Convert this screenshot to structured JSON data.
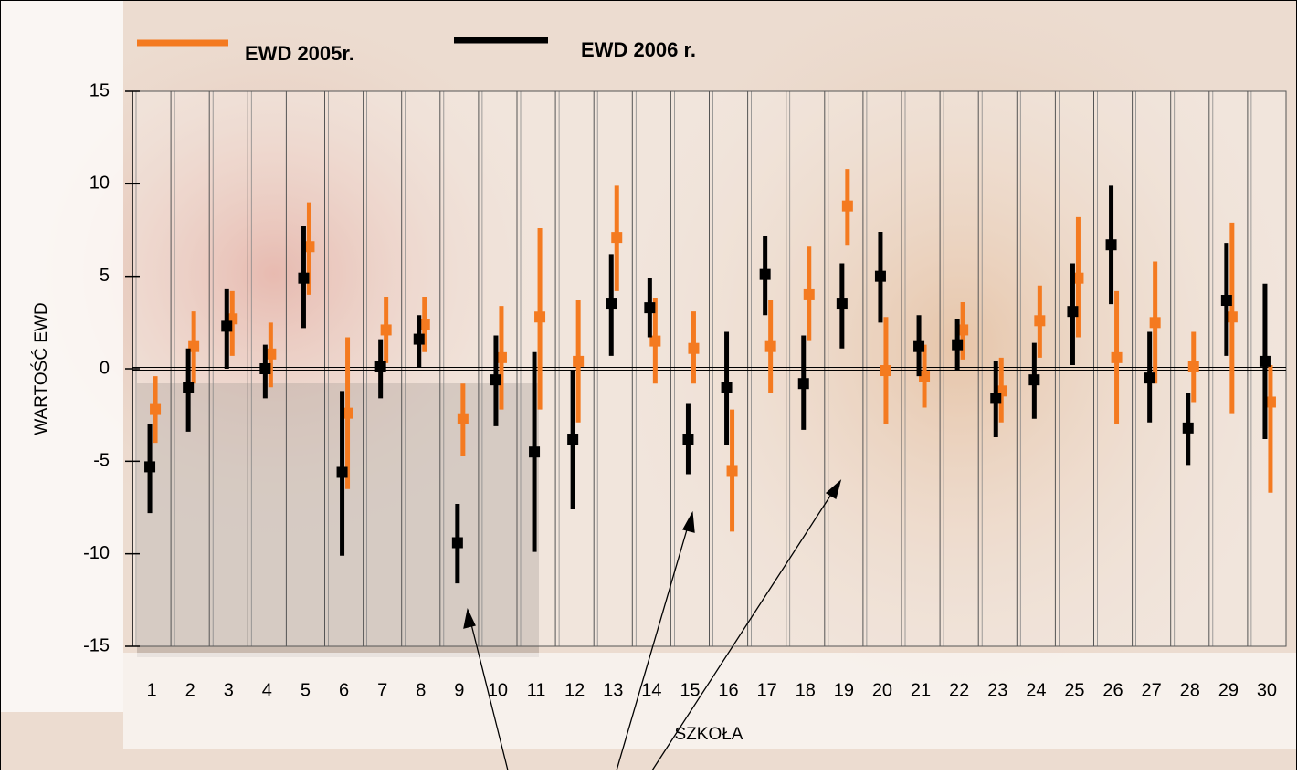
{
  "chart_data": {
    "type": "errorbar",
    "x_label": "SZKOŁA",
    "y_label": "WARTOŚĆ EWD",
    "categories": [
      1,
      2,
      3,
      4,
      5,
      6,
      7,
      8,
      9,
      10,
      11,
      12,
      13,
      14,
      15,
      16,
      17,
      18,
      19,
      20,
      21,
      22,
      23,
      24,
      25,
      26,
      27,
      28,
      29,
      30
    ],
    "ylim": [
      -15,
      15
    ],
    "yticks": [
      -15,
      -10,
      -5,
      0,
      5,
      10,
      15
    ],
    "legend": "top",
    "series": [
      {
        "name": "EWD 2005r.",
        "color": "#f47a20",
        "values": [
          -2.2,
          1.2,
          2.7,
          0.8,
          6.6,
          -2.4,
          2.1,
          2.4,
          -2.7,
          0.6,
          2.8,
          0.4,
          7.1,
          1.5,
          1.1,
          -5.5,
          1.2,
          4.0,
          8.8,
          -0.1,
          -0.4,
          2.1,
          -1.2,
          2.6,
          4.9,
          0.6,
          2.5,
          0.1,
          2.8,
          -1.8
        ],
        "lower": [
          -4.0,
          -0.8,
          0.7,
          -1.0,
          4.0,
          -6.5,
          0.3,
          0.9,
          -4.7,
          -2.2,
          -2.2,
          -2.9,
          4.2,
          -0.8,
          -0.8,
          -8.8,
          -1.3,
          1.5,
          6.7,
          -3.0,
          -2.1,
          0.5,
          -2.9,
          0.6,
          1.7,
          -3.0,
          -0.8,
          -1.8,
          -2.4,
          -6.7
        ],
        "upper": [
          -0.4,
          3.1,
          4.2,
          2.5,
          9.0,
          1.7,
          3.9,
          3.9,
          -0.8,
          3.4,
          7.6,
          3.7,
          9.9,
          3.8,
          3.1,
          -2.2,
          3.7,
          6.6,
          10.8,
          2.8,
          1.3,
          3.6,
          0.6,
          4.5,
          8.2,
          4.2,
          5.8,
          2.0,
          7.9,
          0.2
        ]
      },
      {
        "name": "EWD 2006 r.",
        "color": "#000000",
        "values": [
          -5.3,
          -1.0,
          2.3,
          0.0,
          4.9,
          -5.6,
          0.1,
          1.6,
          -9.4,
          -0.6,
          -4.5,
          -3.8,
          3.5,
          3.3,
          -3.8,
          -1.0,
          5.1,
          -0.8,
          3.5,
          5.0,
          1.2,
          1.3,
          -1.6,
          -0.6,
          3.1,
          6.7,
          -0.5,
          -3.2,
          3.7,
          0.4
        ],
        "lower": [
          -7.8,
          -3.4,
          0.0,
          -1.6,
          2.2,
          -10.1,
          -1.6,
          0.1,
          -11.6,
          -3.1,
          -9.9,
          -7.6,
          0.7,
          1.7,
          -5.7,
          -4.1,
          2.9,
          -3.3,
          1.1,
          2.5,
          -0.4,
          -0.1,
          -3.7,
          -2.7,
          0.2,
          3.5,
          -2.9,
          -5.2,
          0.7,
          -3.8
        ],
        "upper": [
          -3.0,
          1.1,
          4.3,
          1.3,
          7.7,
          -1.2,
          1.6,
          2.9,
          -7.3,
          1.8,
          0.9,
          -0.1,
          6.2,
          4.9,
          -1.9,
          2.0,
          7.2,
          1.8,
          5.7,
          7.4,
          2.9,
          2.7,
          0.4,
          1.4,
          5.7,
          9.9,
          2.0,
          -1.3,
          6.8,
          4.6
        ]
      }
    ]
  }
}
